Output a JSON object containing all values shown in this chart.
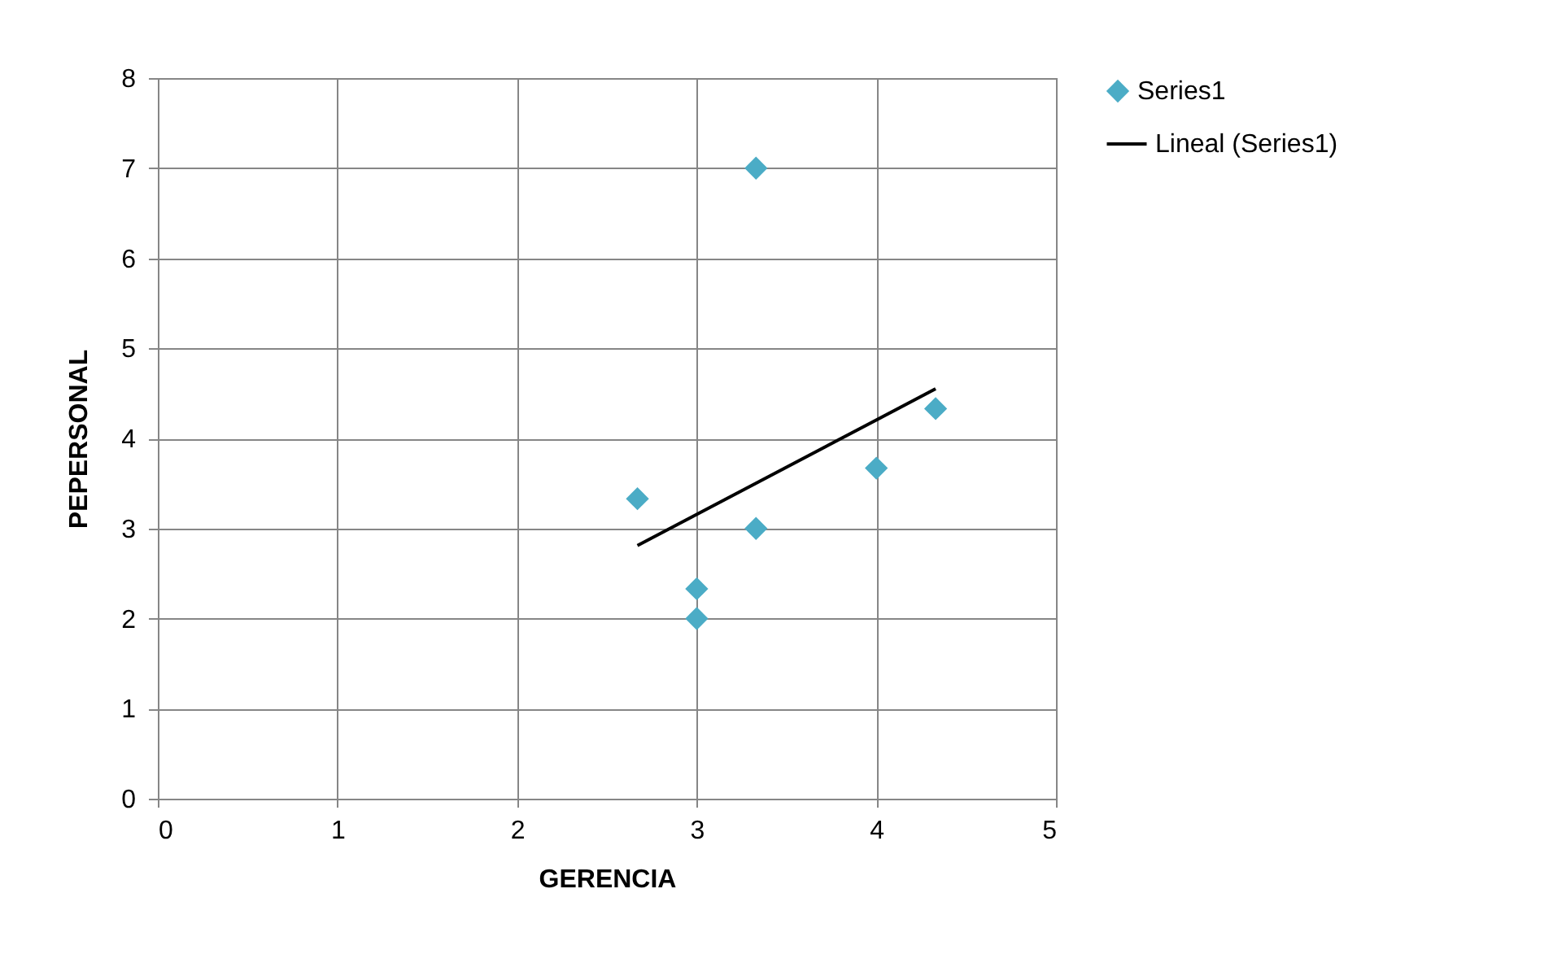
{
  "chart_data": {
    "type": "scatter",
    "xlabel": "GERENCIA",
    "ylabel": "PEPERSONAL",
    "xlim": [
      0,
      5
    ],
    "xticks": [
      0,
      1,
      2,
      3,
      4,
      5
    ],
    "ylim": [
      0,
      8
    ],
    "yticks": [
      0,
      1,
      2,
      3,
      4,
      5,
      6,
      7,
      8
    ],
    "grid": true,
    "legend": "right",
    "series": [
      {
        "name": "Series1",
        "marker": "diamond",
        "color": "#4bacc6",
        "x": [
          2.67,
          3,
          3,
          3.33,
          3.33,
          4,
          4.33
        ],
        "values": [
          3.33,
          2.33,
          2,
          7,
          3,
          3.67,
          4.33
        ]
      },
      {
        "name": "Lineal (Series1)",
        "type": "line",
        "marker": "none",
        "line_style": "solid",
        "color": "#000000",
        "x": [
          2.67,
          4.33
        ],
        "values": [
          2.81,
          4.55
        ]
      }
    ]
  }
}
